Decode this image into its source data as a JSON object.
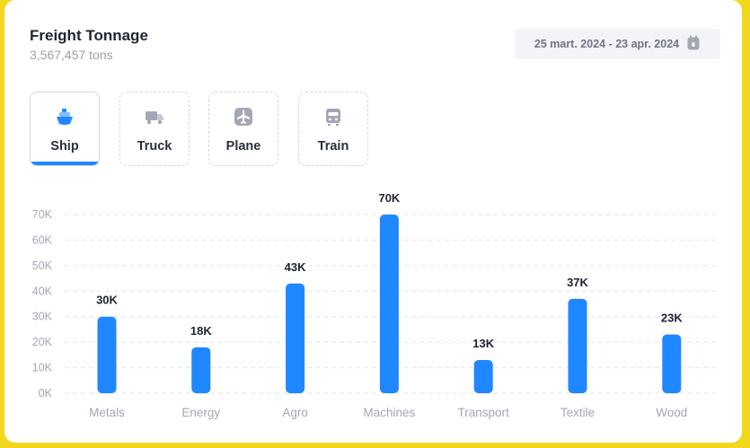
{
  "header": {
    "title": "Freight Tonnage",
    "subtitle": "3,567,457 tons",
    "date_range": "25 mart. 2024 - 23 apr. 2024"
  },
  "tabs": [
    {
      "label": "Ship",
      "icon": "ship-icon",
      "active": true
    },
    {
      "label": "Truck",
      "icon": "truck-icon",
      "active": false
    },
    {
      "label": "Plane",
      "icon": "plane-icon",
      "active": false
    },
    {
      "label": "Train",
      "icon": "train-icon",
      "active": false
    }
  ],
  "colors": {
    "accent": "#1f87ff",
    "icon_inactive": "#a3a7b4",
    "background_frame": "#f2d81c"
  },
  "chart_data": {
    "type": "bar",
    "categories": [
      "Metals",
      "Energy",
      "Agro",
      "Machines",
      "Transport",
      "Textile",
      "Wood"
    ],
    "values": [
      30000,
      18000,
      43000,
      70000,
      13000,
      37000,
      23000
    ],
    "data_labels": [
      "30K",
      "18K",
      "43K",
      "70K",
      "13K",
      "37K",
      "23K"
    ],
    "yticks": [
      0,
      10000,
      20000,
      30000,
      40000,
      50000,
      60000,
      70000
    ],
    "ytick_labels": [
      "0K",
      "10K",
      "20K",
      "30K",
      "40K",
      "50K",
      "60K",
      "70K"
    ],
    "ylim": [
      0,
      70000
    ],
    "grid": true,
    "xlabel": "",
    "ylabel": ""
  }
}
